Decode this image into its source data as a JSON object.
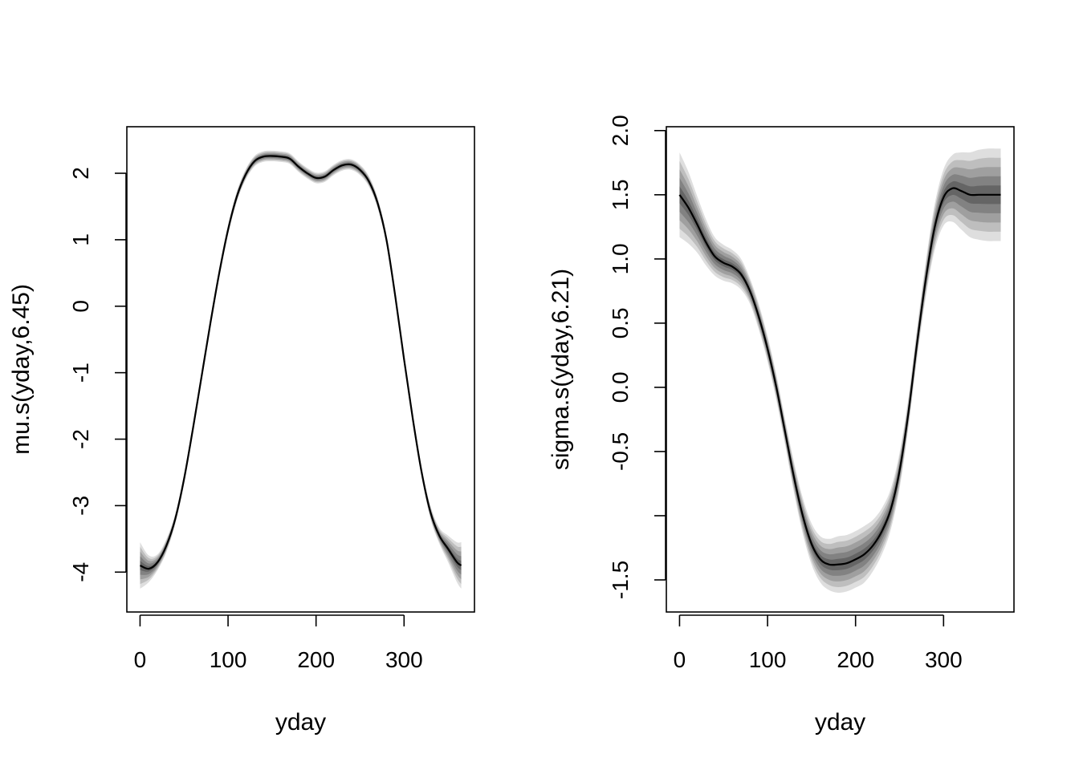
{
  "chart_data": [
    {
      "type": "line",
      "xlabel": "yday",
      "ylabel": "mu.s(yday,6.45)",
      "xlim": [
        -15,
        380
      ],
      "ylim": [
        -4.6,
        2.7
      ],
      "xticks": [
        0,
        100,
        200,
        300
      ],
      "xtick_labels": [
        "0",
        "100",
        "200",
        "300"
      ],
      "yticks": [
        -4,
        -3,
        -2,
        -1,
        0,
        1,
        2
      ],
      "ytick_labels": [
        "-4",
        "-3",
        "-2",
        "-1",
        "0",
        "1",
        "2"
      ],
      "grid": false,
      "series": [
        {
          "x": [
            0,
            10,
            20,
            30,
            40,
            50,
            60,
            70,
            80,
            90,
            100,
            110,
            120,
            130,
            140,
            150,
            160,
            170,
            180,
            190,
            200,
            210,
            220,
            230,
            240,
            250,
            260,
            270,
            280,
            290,
            300,
            310,
            320,
            330,
            340,
            350,
            360,
            365
          ],
          "y": [
            -3.9,
            -3.95,
            -3.85,
            -3.6,
            -3.2,
            -2.6,
            -1.85,
            -1.05,
            -0.25,
            0.5,
            1.15,
            1.65,
            1.98,
            2.18,
            2.25,
            2.26,
            2.25,
            2.22,
            2.1,
            2.0,
            1.93,
            1.95,
            2.05,
            2.12,
            2.13,
            2.05,
            1.88,
            1.55,
            1.0,
            0.15,
            -0.8,
            -1.7,
            -2.5,
            -3.1,
            -3.45,
            -3.65,
            -3.85,
            -3.9
          ],
          "band": [
            0.35,
            0.2,
            0.12,
            0.1,
            0.08,
            0.08,
            0.08,
            0.08,
            0.08,
            0.08,
            0.08,
            0.08,
            0.08,
            0.08,
            0.08,
            0.08,
            0.08,
            0.08,
            0.08,
            0.08,
            0.08,
            0.08,
            0.08,
            0.08,
            0.08,
            0.08,
            0.08,
            0.08,
            0.08,
            0.08,
            0.08,
            0.08,
            0.08,
            0.1,
            0.12,
            0.2,
            0.3,
            0.35
          ]
        }
      ]
    },
    {
      "type": "line",
      "xlabel": "yday",
      "ylabel": "sigma.s(yday,6.21)",
      "xlim": [
        -15,
        380
      ],
      "ylim": [
        -1.75,
        2.03
      ],
      "xticks": [
        0,
        100,
        200,
        300
      ],
      "xtick_labels": [
        "0",
        "100",
        "200",
        "300"
      ],
      "yticks": [
        -1.5,
        -1.0,
        -0.5,
        0.0,
        0.5,
        1.0,
        1.5,
        2.0
      ],
      "ytick_labels": [
        "-1.5",
        "",
        "-0.5",
        "0.0",
        "0.5",
        "1.0",
        "1.5",
        "2.0"
      ],
      "grid": false,
      "series": [
        {
          "x": [
            0,
            10,
            20,
            30,
            40,
            50,
            60,
            70,
            80,
            90,
            100,
            110,
            120,
            130,
            140,
            150,
            160,
            170,
            180,
            190,
            200,
            210,
            220,
            230,
            240,
            250,
            260,
            270,
            280,
            290,
            300,
            310,
            320,
            330,
            340,
            350,
            360,
            365
          ],
          "y": [
            1.5,
            1.4,
            1.27,
            1.13,
            1.02,
            0.97,
            0.94,
            0.88,
            0.75,
            0.55,
            0.3,
            0.0,
            -0.35,
            -0.7,
            -1.0,
            -1.22,
            -1.34,
            -1.38,
            -1.38,
            -1.37,
            -1.34,
            -1.3,
            -1.23,
            -1.12,
            -0.95,
            -0.65,
            -0.2,
            0.35,
            0.85,
            1.25,
            1.48,
            1.55,
            1.53,
            1.5,
            1.5,
            1.5,
            1.5,
            1.5
          ],
          "band": [
            0.33,
            0.28,
            0.22,
            0.18,
            0.15,
            0.14,
            0.13,
            0.12,
            0.1,
            0.1,
            0.1,
            0.1,
            0.1,
            0.12,
            0.14,
            0.16,
            0.18,
            0.2,
            0.22,
            0.22,
            0.22,
            0.22,
            0.2,
            0.18,
            0.16,
            0.14,
            0.12,
            0.12,
            0.14,
            0.18,
            0.22,
            0.26,
            0.3,
            0.33,
            0.35,
            0.36,
            0.36,
            0.36
          ]
        }
      ]
    }
  ]
}
